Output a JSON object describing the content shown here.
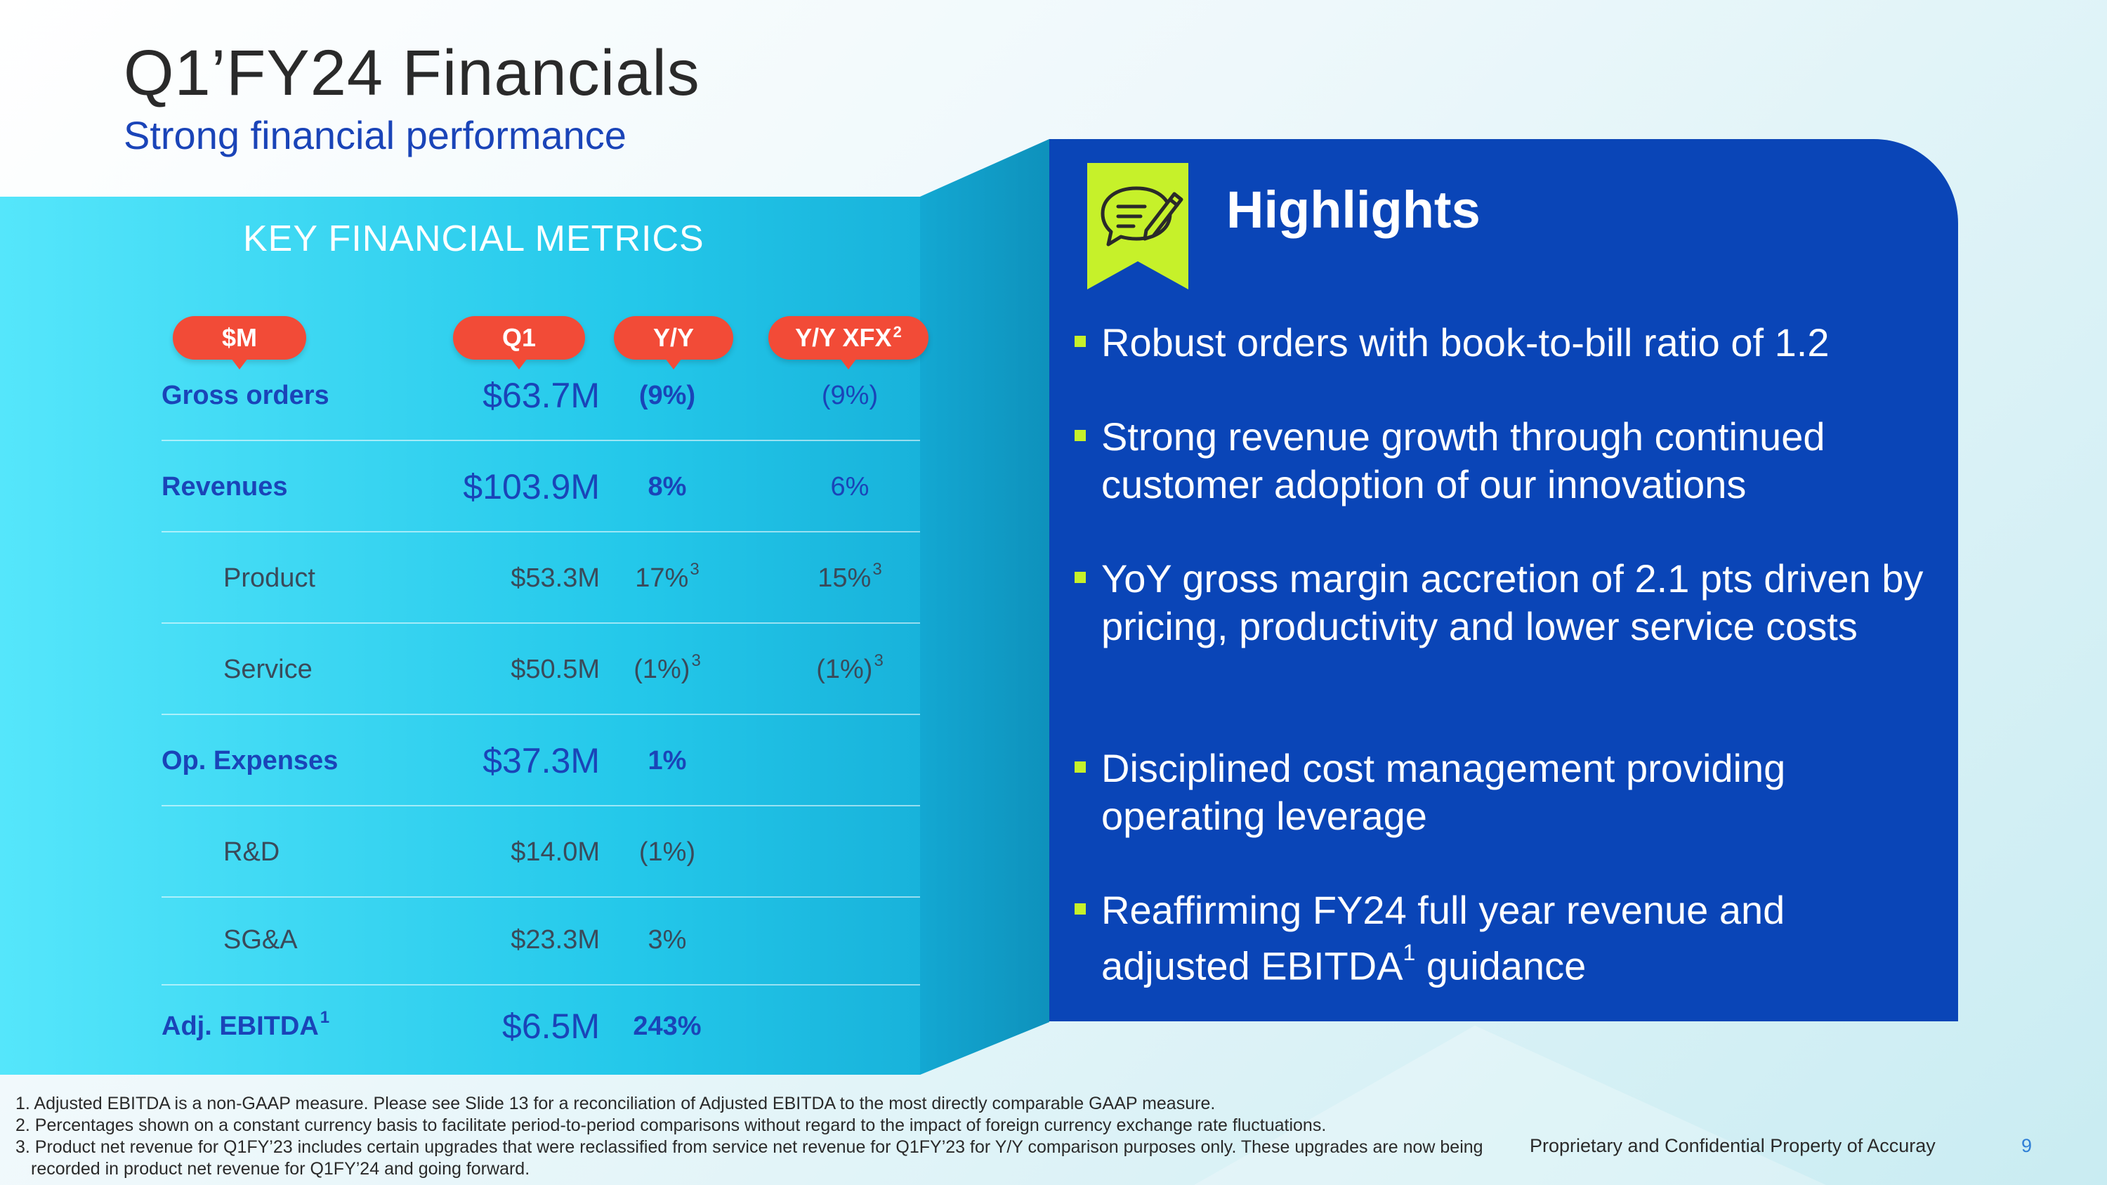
{
  "header": {
    "title": "Q1’FY24 Financials",
    "subtitle": "Strong financial performance"
  },
  "metrics": {
    "heading": "KEY FINANCIAL METRICS",
    "columns": {
      "label": "$M",
      "q1": "Q1",
      "yy": "Y/Y",
      "xfx": "Y/Y XFX",
      "xfx_sup": "2"
    },
    "rows": [
      {
        "label": "Gross orders",
        "q1": "$63.7M",
        "yy": "(9%)",
        "xfx": "(9%)",
        "label_sup": "",
        "yy_sup": "",
        "xfx_sup": ""
      },
      {
        "label": "Revenues",
        "q1": "$103.9M",
        "yy": "8%",
        "xfx": "6%",
        "label_sup": "",
        "yy_sup": "",
        "xfx_sup": ""
      },
      {
        "label": "Product",
        "q1": "$53.3M",
        "yy": "17%",
        "xfx": "15%",
        "label_sup": "",
        "yy_sup": "3",
        "xfx_sup": "3"
      },
      {
        "label": "Service",
        "q1": "$50.5M",
        "yy": "(1%)",
        "xfx": "(1%)",
        "label_sup": "",
        "yy_sup": "3",
        "xfx_sup": "3"
      },
      {
        "label": "Op. Expenses",
        "q1": "$37.3M",
        "yy": "1%",
        "xfx": "",
        "label_sup": "",
        "yy_sup": "",
        "xfx_sup": ""
      },
      {
        "label": "R&D",
        "q1": "$14.0M",
        "yy": "(1%)",
        "xfx": "",
        "label_sup": "",
        "yy_sup": "",
        "xfx_sup": ""
      },
      {
        "label": "SG&A",
        "q1": "$23.3M",
        "yy": "3%",
        "xfx": "",
        "label_sup": "",
        "yy_sup": "",
        "xfx_sup": ""
      },
      {
        "label": "Adj. EBITDA",
        "q1": "$6.5M",
        "yy": "243%",
        "xfx": "",
        "label_sup": "1",
        "yy_sup": "",
        "xfx_sup": ""
      }
    ]
  },
  "highlights": {
    "title": "Highlights",
    "icon": "chat-pencil-icon",
    "bullets": [
      {
        "text": "Robust orders with book-to-bill ratio of 1.2"
      },
      {
        "text": "Strong revenue growth through continued customer adoption of our innovations"
      },
      {
        "text": "YoY gross margin accretion of 2.1 pts driven by pricing, productivity and lower service costs"
      },
      {
        "text": "Disciplined cost management providing operating leverage"
      },
      {
        "text_before": "Reaffirming FY24 full year revenue and adjusted EBITDA",
        "sup": "1",
        "text_after": " guidance"
      }
    ]
  },
  "footnotes": [
    "1. Adjusted EBITDA is a non-GAAP measure.  Please see Slide 13 for a reconciliation of Adjusted EBITDA to the most directly comparable GAAP measure.",
    "2. Percentages shown on a constant currency basis to facilitate period-to-period comparisons without regard to the impact of foreign currency exchange rate fluctuations.",
    "3. Product net revenue for Q1FY’23 includes certain upgrades that were reclassified from service net revenue for Q1FY’23 for Y/Y comparison purposes only. These upgrades are now being recorded in product net revenue for Q1FY’24 and going forward."
  ],
  "footer": {
    "proprietary": "Proprietary and Confidential Property of Accuray",
    "page_number": "9"
  },
  "colors": {
    "accent_blue": "#0a45b7",
    "cyan": "#2fd3f0",
    "pill_red": "#f24b37",
    "lime": "#c6f12a"
  }
}
